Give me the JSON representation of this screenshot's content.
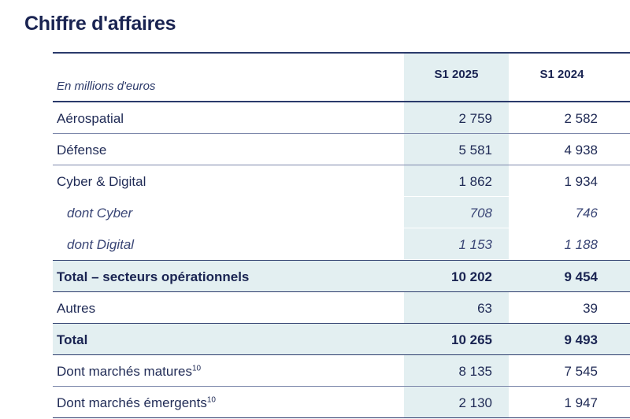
{
  "title": "Chiffre d'affaires",
  "table": {
    "unit_label": "En millions d'euros",
    "columns": [
      "S1 2025",
      "S1 2024"
    ],
    "rows": [
      {
        "label": "Aérospatial",
        "v1": "2 759",
        "v2": "2 582"
      },
      {
        "label": "Défense",
        "v1": "5 581",
        "v2": "4 938"
      },
      {
        "label": "Cyber & Digital",
        "v1": "1 862",
        "v2": "1 934"
      },
      {
        "label": "dont Cyber",
        "v1": "708",
        "v2": "746"
      },
      {
        "label": "dont Digital",
        "v1": "1 153",
        "v2": "1 188"
      },
      {
        "label": "Total – secteurs opérationnels",
        "v1": "10 202",
        "v2": "9 454"
      },
      {
        "label": "Autres",
        "v1": "63",
        "v2": "39"
      },
      {
        "label": "Total",
        "v1": "10 265",
        "v2": "9 493"
      },
      {
        "label": "Dont marchés matures",
        "sup": "10",
        "v1": "8 135",
        "v2": "7 545"
      },
      {
        "label": "Dont marchés émergents",
        "sup": "10",
        "v1": "2 130",
        "v2": "1 947"
      }
    ]
  }
}
